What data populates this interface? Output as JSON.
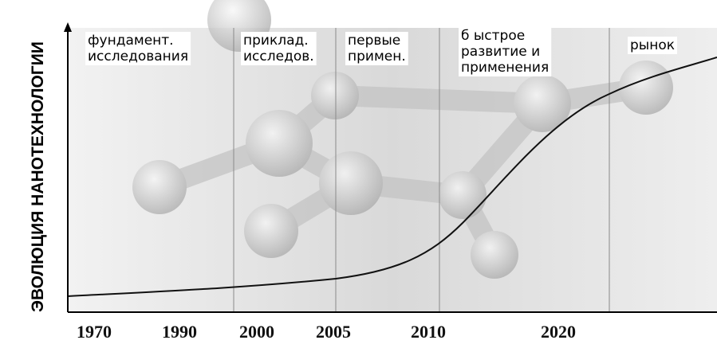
{
  "y_axis_label": "ЭВОЛЮЦИЯ НАНОТЕХНОЛОГИИ",
  "x_labels": [
    "1970",
    "1990",
    "2000",
    "2005",
    "2010",
    "2020"
  ],
  "phases": [
    {
      "lines": [
        "фундамент.",
        "исследования"
      ]
    },
    {
      "lines": [
        "приклад.",
        "исследов."
      ]
    },
    {
      "lines": [
        "первые",
        "примен."
      ]
    },
    {
      "lines": [
        "б ыстрое",
        "развитие и",
        "применения"
      ]
    },
    {
      "lines": [
        "рынок"
      ]
    }
  ]
}
